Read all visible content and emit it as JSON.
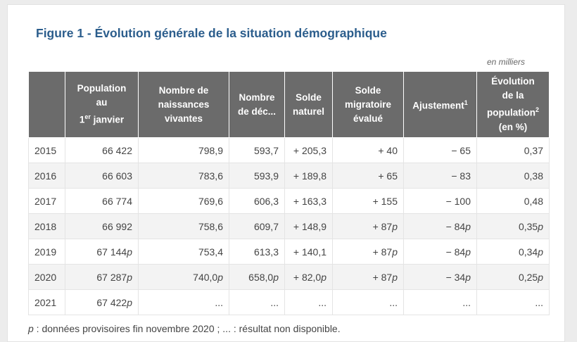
{
  "title": "Figure 1 - Évolution générale de la situation démographique",
  "unit_note": "en milliers",
  "table": {
    "header": [
      [],
      [
        "Population",
        "au",
        {
          "text": "1",
          "sup": "er",
          "tail": " janvier"
        }
      ],
      [
        "Nombre de",
        "naissances",
        "vivantes"
      ],
      [
        "Nombre",
        "de déc..."
      ],
      [
        "Solde",
        "naturel"
      ],
      [
        "Solde",
        "migratoire",
        "évalué"
      ],
      [
        {
          "text": "Ajustement",
          "sup": "1",
          "tail": ""
        }
      ],
      [
        "Évolution",
        "de la",
        {
          "text": "population",
          "sup": "2",
          "tail": ""
        },
        "(en %)"
      ]
    ],
    "rows": [
      [
        "2015",
        "66 422",
        "798,9",
        "593,7",
        "+ 205,3",
        "+ 40",
        "− 65",
        "0,37"
      ],
      [
        "2016",
        "66 603",
        "783,6",
        "593,9",
        "+ 189,8",
        "+ 65",
        "− 83",
        "0,38"
      ],
      [
        "2017",
        "66 774",
        "769,6",
        "606,3",
        "+ 163,3",
        "+ 155",
        "− 100",
        "0,48"
      ],
      [
        "2018",
        "66 992",
        "758,6",
        "609,7",
        "+ 148,9",
        {
          "text": "+ 87",
          "note": "p"
        },
        {
          "text": "− 84",
          "note": "p"
        },
        {
          "text": "0,35",
          "note": "p"
        }
      ],
      [
        "2019",
        {
          "text": "67 144",
          "note": "p"
        },
        "753,4",
        "613,3",
        "+ 140,1",
        {
          "text": "+ 87",
          "note": "p"
        },
        {
          "text": "− 84",
          "note": "p"
        },
        {
          "text": "0,34",
          "note": "p"
        }
      ],
      [
        "2020",
        {
          "text": "67 287",
          "note": "p"
        },
        {
          "text": "740,0",
          "note": "p"
        },
        {
          "text": "658,0",
          "note": "p"
        },
        {
          "text": "+ 82,0",
          "note": "p"
        },
        {
          "text": "+ 87",
          "note": "p"
        },
        {
          "text": "− 34",
          "note": "p"
        },
        {
          "text": "0,25",
          "note": "p"
        }
      ],
      [
        "2021",
        {
          "text": "67 422",
          "note": "p"
        },
        "...",
        "...",
        "...",
        "...",
        "...",
        "..."
      ]
    ]
  },
  "footnote": {
    "mark": "p",
    "text": " : données provisoires fin novembre 2020 ; ... : résultat non disponible."
  }
}
